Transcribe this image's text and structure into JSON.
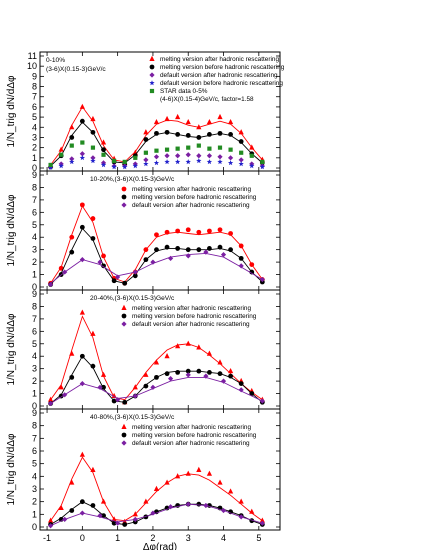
{
  "colors": {
    "melt_after": "#ff0000",
    "melt_before": "#000000",
    "default_after": "#7b1fa2",
    "default_before": "#2222cc",
    "star": "#228b22"
  },
  "axes": {
    "xlabel": "Δφ(rad)",
    "ylabel": "1/N_trig dN/dΔφ",
    "xticks": [
      "-1",
      "0",
      "1",
      "2",
      "3",
      "4",
      "5"
    ],
    "xlim": [
      -1.2,
      5.6
    ]
  },
  "chart_data": [
    {
      "type": "scatter",
      "title": "0-10%",
      "subtitle": "(3-6)X(0.15-3)GeV/c",
      "xlabel": "Δφ(rad)",
      "ylabel": "1/N_trig dN/dΔφ",
      "ylim": [
        0,
        11
      ],
      "yticks": [
        0,
        1,
        2,
        3,
        4,
        5,
        6,
        7,
        8,
        9,
        10,
        11
      ],
      "legend_position": "top-right",
      "series": [
        {
          "name": "melting version after hadronic rescattering",
          "marker": "triangle",
          "color": "#ff0000",
          "x": [
            -0.9,
            -0.6,
            -0.3,
            0,
            0.3,
            0.6,
            0.9,
            1.2,
            1.5,
            1.8,
            2.1,
            2.4,
            2.7,
            3.0,
            3.3,
            3.6,
            3.9,
            4.2,
            4.5,
            4.8,
            5.1
          ],
          "y": [
            0.2,
            1.8,
            4.0,
            6.0,
            4.8,
            2.5,
            0.9,
            0.5,
            1.5,
            3.5,
            4.5,
            4.8,
            5.0,
            4.5,
            4.0,
            4.5,
            5.0,
            4.5,
            3.5,
            2.0,
            0.8
          ],
          "fit_y": [
            0.3,
            1.7,
            4.2,
            6.0,
            4.6,
            2.2,
            0.8,
            0.6,
            1.6,
            3.2,
            4.3,
            4.7,
            4.6,
            4.2,
            4.0,
            4.3,
            4.6,
            4.3,
            3.4,
            2.0,
            0.8
          ]
        },
        {
          "name": "melting version before hadronic rescattering",
          "marker": "circle",
          "color": "#000000",
          "x": [
            -0.9,
            -0.6,
            -0.3,
            0,
            0.3,
            0.6,
            0.9,
            1.2,
            1.5,
            1.8,
            2.1,
            2.4,
            2.7,
            3.0,
            3.3,
            3.6,
            3.9,
            4.2,
            4.5,
            4.8,
            5.1
          ],
          "y": [
            0.1,
            1.2,
            3.0,
            4.6,
            3.5,
            1.8,
            0.6,
            0.4,
            1.2,
            2.8,
            3.4,
            3.5,
            3.3,
            3.2,
            3.0,
            3.3,
            3.4,
            3.3,
            2.6,
            1.4,
            0.5
          ],
          "fit_y": [
            0.2,
            1.2,
            3.2,
            4.5,
            3.5,
            1.7,
            0.6,
            0.5,
            1.3,
            2.6,
            3.3,
            3.5,
            3.3,
            3.1,
            3.0,
            3.2,
            3.4,
            3.2,
            2.5,
            1.4,
            0.5
          ]
        },
        {
          "name": "default version after hadronic rescattering",
          "marker": "diamond",
          "color": "#7b1fa2",
          "x": [
            -0.9,
            -0.6,
            -0.3,
            0,
            0.3,
            0.6,
            0.9,
            1.2,
            1.5,
            1.8,
            2.1,
            2.4,
            2.7,
            3.0,
            3.3,
            3.6,
            3.9,
            4.2,
            4.5,
            4.8,
            5.1
          ],
          "y": [
            0.1,
            0.4,
            0.9,
            1.4,
            1.0,
            0.5,
            0.2,
            0.2,
            0.4,
            0.8,
            1.1,
            1.2,
            1.2,
            1.3,
            1.2,
            1.2,
            1.1,
            1.0,
            0.8,
            0.4,
            0.2
          ]
        },
        {
          "name": "default version before hadronic rescattering",
          "marker": "star",
          "color": "#2222cc",
          "x": [
            -0.9,
            -0.6,
            -0.3,
            0,
            0.3,
            0.6,
            0.9,
            1.2,
            1.5,
            1.8,
            2.1,
            2.4,
            2.7,
            3.0,
            3.3,
            3.6,
            3.9,
            4.2,
            4.5,
            4.8,
            5.1
          ],
          "y": [
            0.05,
            0.2,
            0.6,
            1.0,
            0.7,
            0.3,
            0.1,
            0.1,
            0.2,
            0.4,
            0.5,
            0.6,
            0.6,
            0.6,
            0.7,
            0.6,
            0.6,
            0.5,
            0.4,
            0.2,
            0.1
          ]
        },
        {
          "name": "STAR data 0-5%",
          "marker": "square",
          "color": "#228b22",
          "x": [
            -0.9,
            -0.6,
            -0.3,
            0,
            0.3,
            0.6,
            0.9,
            1.2,
            1.5,
            1.8,
            2.1,
            2.4,
            2.7,
            3.0,
            3.3,
            3.6,
            3.9,
            4.2,
            4.5,
            4.8,
            5.1
          ],
          "y": [
            0.3,
            1.3,
            2.2,
            2.5,
            2.0,
            1.3,
            0.7,
            0.6,
            1.0,
            1.5,
            1.7,
            1.8,
            1.9,
            2.0,
            2.2,
            1.9,
            2.0,
            1.8,
            1.5,
            1.2,
            0.6
          ]
        }
      ],
      "legend_extra": "(4-6)X(0.15-4)GeV/c, factor=1.58"
    },
    {
      "type": "scatter",
      "title": "10-20%,(3-6)X(0.15-3)GeV/c",
      "ylim": [
        0,
        9
      ],
      "yticks": [
        0,
        1,
        2,
        3,
        4,
        5,
        6,
        7,
        8,
        9
      ],
      "series": [
        {
          "name": "melting version after hadronic rescattering",
          "marker": "circle",
          "color": "#ff0000",
          "x": [
            -0.9,
            -0.6,
            -0.3,
            0,
            0.3,
            0.6,
            0.9,
            1.2,
            1.5,
            1.8,
            2.1,
            2.4,
            2.7,
            3.0,
            3.3,
            3.6,
            3.9,
            4.2,
            4.5,
            4.8,
            5.1
          ],
          "y": [
            0.3,
            1.5,
            4.0,
            6.6,
            5.5,
            2.5,
            0.7,
            0.3,
            1.2,
            3.0,
            4.2,
            4.4,
            4.5,
            4.6,
            4.4,
            4.5,
            4.6,
            4.3,
            3.3,
            1.8,
            0.6
          ],
          "fit_y": [
            0.3,
            1.6,
            4.2,
            6.5,
            5.2,
            2.4,
            0.7,
            0.4,
            1.4,
            3.0,
            4.0,
            4.3,
            4.4,
            4.3,
            4.2,
            4.3,
            4.4,
            4.2,
            3.3,
            1.8,
            0.6
          ]
        },
        {
          "name": "melting version before hadronic rescattering",
          "marker": "circle",
          "color": "#000000",
          "x": [
            -0.9,
            -0.6,
            -0.3,
            0,
            0.3,
            0.6,
            0.9,
            1.2,
            1.5,
            1.8,
            2.1,
            2.4,
            2.7,
            3.0,
            3.3,
            3.6,
            3.9,
            4.2,
            4.5,
            4.8,
            5.1
          ],
          "y": [
            0.2,
            1.0,
            2.8,
            4.8,
            3.9,
            1.7,
            0.5,
            0.3,
            0.9,
            2.2,
            3.0,
            3.2,
            3.1,
            3.0,
            3.0,
            3.1,
            3.2,
            3.0,
            2.3,
            1.2,
            0.4
          ],
          "fit_y": [
            0.2,
            1.1,
            3.0,
            4.7,
            3.8,
            1.7,
            0.5,
            0.3,
            1.0,
            2.2,
            2.9,
            3.1,
            3.1,
            3.0,
            3.0,
            3.0,
            3.1,
            2.9,
            2.3,
            1.2,
            0.4
          ]
        },
        {
          "name": "default version after hadronic rescattering",
          "marker": "diamond",
          "color": "#7b1fa2",
          "x": [
            -0.9,
            -0.5,
            0,
            0.5,
            1.0,
            1.5,
            2.0,
            2.5,
            3.0,
            3.5,
            4.0,
            4.5,
            5.1
          ],
          "y": [
            0.2,
            1.2,
            2.2,
            2.0,
            0.8,
            1.2,
            2.0,
            2.3,
            2.5,
            2.8,
            2.6,
            1.7,
            0.6
          ],
          "fit_y": [
            0.3,
            1.2,
            2.2,
            1.8,
            0.9,
            1.2,
            1.9,
            2.4,
            2.6,
            2.7,
            2.4,
            1.6,
            0.6
          ]
        }
      ]
    },
    {
      "type": "scatter",
      "title": "20-40%,(3-6)X(0.15-3)GeV/c",
      "ylim": [
        0,
        9
      ],
      "yticks": [
        0,
        1,
        2,
        3,
        4,
        5,
        6,
        7,
        8,
        9
      ],
      "series": [
        {
          "name": "melting version after hadronic rescattering",
          "marker": "triangle",
          "color": "#ff0000",
          "x": [
            -0.9,
            -0.6,
            -0.3,
            0,
            0.3,
            0.6,
            0.9,
            1.2,
            1.5,
            1.8,
            2.1,
            2.4,
            2.7,
            3.0,
            3.3,
            3.6,
            3.9,
            4.2,
            4.5,
            4.8,
            5.1
          ],
          "y": [
            0.5,
            1.5,
            4.2,
            7.5,
            5.8,
            2.5,
            0.8,
            0.3,
            1.5,
            2.5,
            3.5,
            4.0,
            4.8,
            5.0,
            4.7,
            4.2,
            3.5,
            2.8,
            2.0,
            1.2,
            0.5
          ],
          "fit_y": [
            0.5,
            1.7,
            4.5,
            7.2,
            5.5,
            2.4,
            0.7,
            0.5,
            1.5,
            2.7,
            3.7,
            4.5,
            4.9,
            5.0,
            4.7,
            4.1,
            3.4,
            2.6,
            1.8,
            1.1,
            0.5
          ]
        },
        {
          "name": "melting version before hadronic rescattering",
          "marker": "circle",
          "color": "#000000",
          "x": [
            -0.9,
            -0.6,
            -0.3,
            0,
            0.3,
            0.6,
            0.9,
            1.2,
            1.5,
            1.8,
            2.1,
            2.4,
            2.7,
            3.0,
            3.3,
            3.6,
            3.9,
            4.2,
            4.5,
            4.8,
            5.1
          ],
          "y": [
            0.2,
            0.8,
            2.3,
            4.0,
            3.2,
            1.5,
            0.4,
            0.3,
            0.8,
            1.6,
            2.3,
            2.6,
            2.7,
            2.8,
            2.8,
            2.7,
            2.6,
            2.4,
            1.8,
            1.0,
            0.3
          ],
          "fit_y": [
            0.2,
            0.9,
            2.5,
            4.0,
            3.1,
            1.4,
            0.4,
            0.3,
            0.8,
            1.7,
            2.3,
            2.7,
            2.8,
            2.8,
            2.8,
            2.7,
            2.6,
            2.3,
            1.8,
            1.0,
            0.3
          ]
        },
        {
          "name": "default version after hadronic rescattering",
          "marker": "diamond",
          "color": "#7b1fa2",
          "x": [
            -0.9,
            -0.5,
            0,
            0.5,
            1.0,
            1.5,
            2.0,
            2.5,
            3.0,
            3.5,
            4.0,
            4.5,
            5.1
          ],
          "y": [
            0.2,
            0.9,
            1.8,
            1.5,
            0.5,
            0.8,
            1.5,
            2.2,
            2.5,
            2.4,
            2.0,
            1.3,
            0.4
          ],
          "fit_y": [
            0.2,
            0.9,
            1.8,
            1.4,
            0.6,
            0.8,
            1.4,
            2.0,
            2.3,
            2.3,
            1.9,
            1.2,
            0.4
          ]
        }
      ]
    },
    {
      "type": "scatter",
      "title": "40-80%,(3-6)X(0.15-3)GeV/c",
      "ylim": [
        0,
        9
      ],
      "yticks": [
        0,
        1,
        2,
        3,
        4,
        5,
        6,
        7,
        8,
        9
      ],
      "series": [
        {
          "name": "melting version after hadronic rescattering",
          "marker": "triangle",
          "color": "#ff0000",
          "x": [
            -0.9,
            -0.6,
            -0.3,
            0,
            0.3,
            0.6,
            0.9,
            1.2,
            1.5,
            1.8,
            2.1,
            2.4,
            2.7,
            3.0,
            3.3,
            3.6,
            3.9,
            4.2,
            4.5,
            4.8,
            5.1
          ],
          "y": [
            0.5,
            1.5,
            3.5,
            5.7,
            4.5,
            2.0,
            0.6,
            0.4,
            1.0,
            2.0,
            3.0,
            3.5,
            4.0,
            4.2,
            4.5,
            4.2,
            3.5,
            2.8,
            2.0,
            1.2,
            0.5
          ],
          "fit_y": [
            0.5,
            1.7,
            3.8,
            5.5,
            4.3,
            2.0,
            0.6,
            0.5,
            1.0,
            1.9,
            2.8,
            3.5,
            4.0,
            4.2,
            4.1,
            3.7,
            3.1,
            2.5,
            1.8,
            1.1,
            0.5
          ]
        },
        {
          "name": "melting version before hadronic rescattering",
          "marker": "circle",
          "color": "#000000",
          "x": [
            -0.9,
            -0.6,
            -0.3,
            0,
            0.3,
            0.6,
            0.9,
            1.2,
            1.5,
            1.8,
            2.1,
            2.4,
            2.7,
            3.0,
            3.3,
            3.6,
            3.9,
            4.2,
            4.5,
            4.8,
            5.1
          ],
          "y": [
            0.2,
            0.6,
            1.3,
            2.0,
            1.7,
            0.9,
            0.3,
            0.2,
            0.4,
            0.8,
            1.2,
            1.5,
            1.7,
            1.8,
            1.8,
            1.7,
            1.5,
            1.2,
            0.9,
            0.5,
            0.2
          ],
          "fit_y": [
            0.2,
            0.7,
            1.4,
            2.0,
            1.6,
            0.9,
            0.3,
            0.2,
            0.4,
            0.8,
            1.2,
            1.5,
            1.7,
            1.8,
            1.8,
            1.7,
            1.5,
            1.2,
            0.9,
            0.5,
            0.2
          ]
        },
        {
          "name": "default version after hadronic rescattering",
          "marker": "diamond",
          "color": "#7b1fa2",
          "x": [
            -0.9,
            -0.5,
            0,
            0.5,
            1.0,
            1.5,
            2.0,
            2.5,
            3.0,
            3.5,
            4.0,
            4.5,
            5.1
          ],
          "y": [
            0.1,
            0.6,
            1.1,
            0.9,
            0.3,
            0.6,
            1.1,
            1.6,
            1.8,
            1.7,
            1.3,
            0.8,
            0.3
          ],
          "fit_y": [
            0.1,
            0.6,
            1.1,
            0.8,
            0.4,
            0.6,
            1.0,
            1.5,
            1.8,
            1.7,
            1.3,
            0.8,
            0.3
          ]
        }
      ]
    }
  ]
}
